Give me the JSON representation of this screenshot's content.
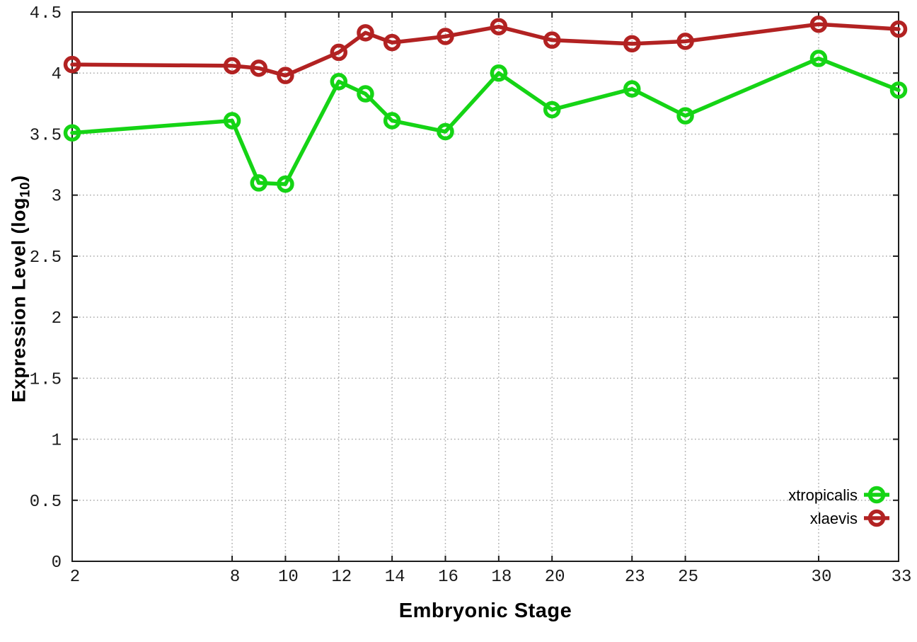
{
  "chart_data": {
    "type": "line",
    "title": "",
    "xlabel": "Embryonic Stage",
    "ylabel": "Expression Level (log10)",
    "ylabel_parts": {
      "prefix": "Expression Level (log",
      "sub": "10",
      "suffix": ")"
    },
    "xlim": [
      2,
      33
    ],
    "ylim": [
      0,
      4.5
    ],
    "grid": true,
    "legend_position": "inside-bottom-right",
    "x": [
      2,
      8,
      9,
      10,
      12,
      13,
      14,
      16,
      18,
      20,
      23,
      25,
      30,
      33
    ],
    "xtick_labels": [
      "2",
      "8",
      "10",
      "12",
      "14",
      "16",
      "18",
      "20",
      "23",
      "25",
      "30",
      "33"
    ],
    "xtick_values": [
      2,
      8,
      10,
      12,
      14,
      16,
      18,
      20,
      23,
      25,
      30,
      33
    ],
    "ytick_labels": [
      "0",
      "0.5",
      "1",
      "1.5",
      "2",
      "2.5",
      "3",
      "3.5",
      "4",
      "4.5"
    ],
    "ytick_values": [
      0,
      0.5,
      1,
      1.5,
      2,
      2.5,
      3,
      3.5,
      4,
      4.5
    ],
    "series": [
      {
        "name": "xtropicalis",
        "color": "#15d415",
        "marker": "open-circle",
        "values": [
          3.51,
          3.61,
          3.1,
          3.09,
          3.93,
          3.83,
          3.61,
          3.52,
          4.0,
          3.7,
          3.87,
          3.65,
          4.12,
          3.86
        ]
      },
      {
        "name": "xlaevis",
        "color": "#b22222",
        "marker": "open-circle",
        "values": [
          4.07,
          4.06,
          4.04,
          3.98,
          4.17,
          4.33,
          4.25,
          4.3,
          4.38,
          4.27,
          4.24,
          4.26,
          4.4,
          4.36
        ]
      }
    ]
  },
  "styles": {
    "background": "#ffffff",
    "border_color": "#1c1c1c",
    "grid_color": "#ababab",
    "tick_label_color": "#1a1a1a",
    "title_color": "#000000",
    "legend_text_color": "#000000"
  }
}
